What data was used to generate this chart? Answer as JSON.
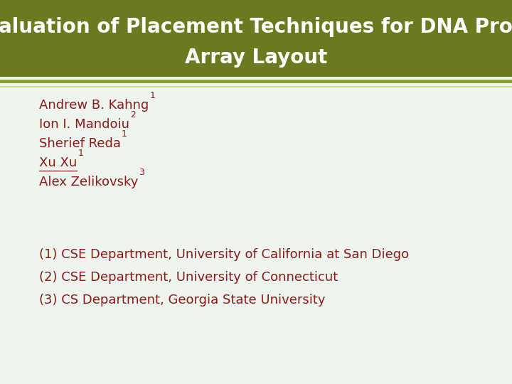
{
  "title_line1": "Evaluation of Placement Techniques for DNA Probe",
  "title_line2": "Array Layout",
  "title_bg_color": "#6b7a1e",
  "title_text_color": "#ffffff",
  "body_bg_color": "#eef5ee",
  "dark_red": "#8b1a1a",
  "authors": [
    {
      "text": "Andrew B. Kahng",
      "sup": "1",
      "underline": false
    },
    {
      "text": "Ion I. Mandoiu",
      "sup": "2",
      "underline": false
    },
    {
      "text": "Sherief Reda",
      "sup": "1",
      "underline": false
    },
    {
      "text": "Xu Xu",
      "sup": "1",
      "underline": true
    },
    {
      "text": "Alex Zelikovsky",
      "sup": "3",
      "underline": false
    }
  ],
  "affiliations": [
    "(1) CSE Department, University of California at San Diego",
    "(2) CSE Department, University of Connecticut",
    "(3) CS Department, Georgia State University"
  ],
  "separator_color1": "#8b9e2e",
  "separator_color2": "#c8d87a",
  "title_fontsize": 20,
  "author_fontsize": 13,
  "affil_fontsize": 13
}
